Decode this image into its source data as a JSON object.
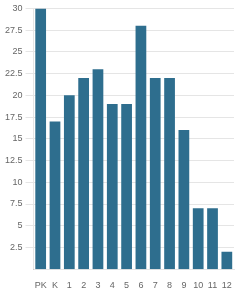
{
  "chart_data": {
    "type": "bar",
    "categories": [
      "PK",
      "K",
      "1",
      "2",
      "3",
      "4",
      "5",
      "6",
      "7",
      "8",
      "9",
      "10",
      "11",
      "12"
    ],
    "values": [
      30,
      17,
      20,
      22,
      23,
      19,
      19,
      28,
      22,
      22,
      16,
      7,
      7,
      2
    ],
    "color": "#2e6e8e",
    "ylim": [
      0,
      30
    ],
    "yticks": [
      2.5,
      5,
      7.5,
      10,
      12.5,
      15,
      17.5,
      20,
      22.5,
      25,
      27.5,
      30
    ],
    "grid": true
  }
}
